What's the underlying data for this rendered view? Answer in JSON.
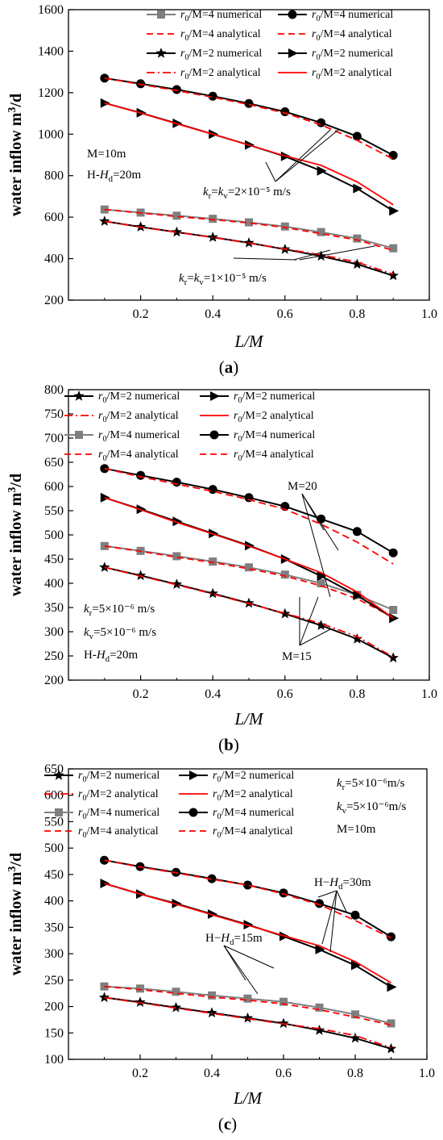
{
  "colors": {
    "numerical_black": "#000000",
    "numerical_gray": "#7f7f7f",
    "analytical_red": "#ff0000"
  },
  "chart_data": [
    {
      "panel": "(a)",
      "type": "line",
      "xlabel": "L/M",
      "ylabel": "water inflow m³/d",
      "xlim": [
        0,
        1.0
      ],
      "ylim": [
        200,
        1600
      ],
      "x_ticks": [
        "0.2",
        "0.4",
        "0.6",
        "0.8",
        "1.0"
      ],
      "y_ticks": [
        "200",
        "400",
        "600",
        "800",
        "1000",
        "1200",
        "1400",
        "1600"
      ],
      "legend": {
        "placement": "top-right",
        "entries": [
          "r0/M=4  numerical",
          "r0/M=4  numerical",
          "r0/M=4  analytical",
          "r0/M=4  analytical",
          "r0/M=2  numerical",
          "r0/M=2  numerical",
          "r0/M=2  analytical",
          "r0/M=2  analytical"
        ]
      },
      "annotations": [
        "M=10m",
        "H-Hd=20m",
        "kr=kv=2×10⁻⁵ m/s",
        "kr=kv=1×10⁻⁵ m/s"
      ],
      "x": [
        0.1,
        0.2,
        0.3,
        0.4,
        0.5,
        0.6,
        0.7,
        0.8,
        0.9
      ],
      "series": [
        {
          "name": "r0/M=4 numerical",
          "values": [
            637,
            622,
            607,
            592,
            575,
            555,
            528,
            497,
            450
          ]
        },
        {
          "name": "r0/M=4 analytical",
          "values": [
            637,
            620,
            603,
            588,
            572,
            550,
            520,
            490,
            440
          ]
        },
        {
          "name": "r0/M=2 numerical",
          "values": [
            580,
            553,
            528,
            503,
            476,
            445,
            412,
            373,
            318
          ]
        },
        {
          "name": "r0/M=2 analytical",
          "values": [
            580,
            552,
            527,
            502,
            475,
            446,
            418,
            383,
            325
          ]
        },
        {
          "name": "r0/M=4 numerical",
          "values": [
            1270,
            1243,
            1215,
            1183,
            1148,
            1108,
            1055,
            990,
            898
          ]
        },
        {
          "name": "r0/M=4 analytical",
          "values": [
            1270,
            1240,
            1210,
            1178,
            1143,
            1102,
            1045,
            970,
            880
          ]
        },
        {
          "name": "r0/M=2 numerical",
          "values": [
            1150,
            1103,
            1052,
            1000,
            948,
            893,
            823,
            738,
            630
          ]
        },
        {
          "name": "r0/M=2 analytical",
          "values": [
            1150,
            1102,
            1050,
            1000,
            948,
            895,
            850,
            770,
            660
          ]
        }
      ]
    },
    {
      "panel": "(b)",
      "type": "line",
      "xlabel": "L/M",
      "ylabel": "water inflow m³/d",
      "xlim": [
        0,
        1.0
      ],
      "ylim": [
        200,
        800
      ],
      "x_ticks": [
        "0.2",
        "0.4",
        "0.6",
        "0.8",
        "1.0"
      ],
      "y_ticks": [
        "200",
        "250",
        "300",
        "350",
        "400",
        "450",
        "500",
        "550",
        "600",
        "650",
        "700",
        "750",
        "800"
      ],
      "legend": {
        "placement": "top-right",
        "entries": [
          "r0/M=2  numerical",
          "r0/M=2  numerical",
          "r0/M=2  analytical",
          "r0/M=2  analytical",
          "r0/M=4  numerical",
          "r0/M=4  numerical",
          "r0/M=4  analytical",
          "r0/M=4  analytical"
        ]
      },
      "annotations": [
        "M=20",
        "M=15",
        "kr=5×10⁻⁶ m/s",
        "kv=5×10⁻⁶ m/s",
        "H-Hd=20m"
      ],
      "x": [
        0.1,
        0.2,
        0.3,
        0.4,
        0.5,
        0.6,
        0.7,
        0.8,
        0.9
      ],
      "series": [
        {
          "name": "r0/M=2 numerical",
          "values": [
            433,
            416,
            398,
            379,
            359,
            337,
            313,
            285,
            246
          ]
        },
        {
          "name": "r0/M=2 analytical",
          "values": [
            433,
            415,
            397,
            378,
            358,
            338,
            317,
            290,
            248
          ]
        },
        {
          "name": "r0/M=4 numerical",
          "values": [
            477,
            467,
            456,
            445,
            433,
            418,
            400,
            376,
            345
          ]
        },
        {
          "name": "r0/M=4 analytical",
          "values": [
            477,
            466,
            454,
            443,
            430,
            415,
            395,
            368,
            330
          ]
        },
        {
          "name": "r0/M=2 numerical",
          "values": [
            577,
            553,
            528,
            503,
            478,
            450,
            415,
            375,
            328
          ]
        },
        {
          "name": "r0/M=2 analytical",
          "values": [
            577,
            552,
            526,
            502,
            477,
            450,
            422,
            382,
            328
          ]
        },
        {
          "name": "r0/M=4 numerical",
          "values": [
            637,
            623,
            609,
            594,
            577,
            559,
            533,
            507,
            463
          ]
        },
        {
          "name": "r0/M=4 analytical",
          "values": [
            637,
            620,
            605,
            590,
            573,
            553,
            522,
            485,
            440
          ]
        }
      ]
    },
    {
      "panel": "(c)",
      "type": "line",
      "xlabel": "L/M",
      "ylabel": "water inflow m³/d",
      "xlim": [
        0,
        1.0
      ],
      "ylim": [
        100,
        650
      ],
      "x_ticks": [
        "0.2",
        "0.4",
        "0.6",
        "0.8",
        "1.0"
      ],
      "y_ticks": [
        "100",
        "150",
        "200",
        "250",
        "300",
        "350",
        "400",
        "450",
        "500",
        "550",
        "600",
        "650"
      ],
      "legend": {
        "placement": "top",
        "entries": [
          "r0/M=2 numerical",
          "r0/M=2 numerical",
          "r0/M=2 analytical",
          "r0/M=2 analytical",
          "r0/M=4 numerical",
          "r0/M=4 numerical",
          "r0/M=4 analytical",
          "r0/M=4 analytical"
        ]
      },
      "annotations": [
        "kr=5×10⁻⁶m/s",
        "kv=5×10⁻⁶m/s",
        "M=10m",
        "H−Hd=30m",
        "H−Hd=15m"
      ],
      "x": [
        0.1,
        0.2,
        0.3,
        0.4,
        0.5,
        0.6,
        0.7,
        0.8,
        0.9
      ],
      "series": [
        {
          "name": "r0/M=2 numerical",
          "values": [
            217,
            208,
            198,
            188,
            178,
            168,
            155,
            140,
            120
          ]
        },
        {
          "name": "r0/M=2 analytical",
          "values": [
            217,
            207,
            197,
            187,
            177,
            167,
            158,
            145,
            122
          ]
        },
        {
          "name": "r0/M=4 numerical",
          "values": [
            238,
            234,
            228,
            221,
            215,
            209,
            198,
            185,
            168
          ]
        },
        {
          "name": "r0/M=4 analytical",
          "values": [
            238,
            232,
            225,
            218,
            212,
            205,
            194,
            180,
            165
          ]
        },
        {
          "name": "r0/M=2 numerical",
          "values": [
            433,
            413,
            395,
            375,
            355,
            333,
            308,
            278,
            237
          ]
        },
        {
          "name": "r0/M=2 analytical",
          "values": [
            433,
            413,
            394,
            374,
            354,
            334,
            315,
            285,
            245
          ]
        },
        {
          "name": "r0/M=4 numerical",
          "values": [
            477,
            465,
            454,
            442,
            430,
            415,
            395,
            373,
            332
          ]
        },
        {
          "name": "r0/M=4 analytical",
          "values": [
            477,
            464,
            453,
            441,
            430,
            413,
            393,
            363,
            330
          ]
        }
      ]
    }
  ]
}
